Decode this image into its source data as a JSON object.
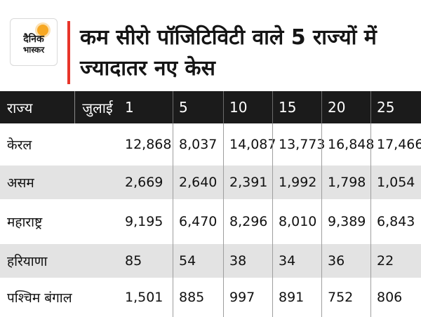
{
  "logo": {
    "line1": "दैनिक",
    "line2": "भास्कर"
  },
  "title": "कम सीरो पॉजिटिविटी वाले 5 राज्यों में ज्यादातर नए केस",
  "colors": {
    "accent": "#e8352a",
    "header_bg": "#1b1b1b",
    "stripe": "#e3e3e3",
    "logo_sun": "#f7a823"
  },
  "chart_data": {
    "type": "table",
    "title": "कम सीरो पॉजिटिविटी वाले 5 राज्यों में ज्यादातर नए केस",
    "row_header": "राज्य",
    "month_label": "जुलाई",
    "columns": [
      "1",
      "5",
      "10",
      "15",
      "20",
      "25"
    ],
    "rows": [
      {
        "state": "केरल",
        "values": [
          "12,868",
          "8,037",
          "14,087",
          "13,773",
          "16,848",
          "17,466"
        ]
      },
      {
        "state": "असम",
        "values": [
          "2,669",
          "2,640",
          "2,391",
          "1,992",
          "1,798",
          "1,054"
        ]
      },
      {
        "state": "महाराष्ट्र",
        "values": [
          "9,195",
          "6,470",
          "8,296",
          "8,010",
          "9,389",
          "6,843"
        ]
      },
      {
        "state": "हरियाणा",
        "values": [
          "85",
          "54",
          "38",
          "34",
          "36",
          "22"
        ]
      },
      {
        "state": "पश्चिम बंगाल",
        "values": [
          "1,501",
          "885",
          "997",
          "891",
          "752",
          "806"
        ]
      }
    ]
  }
}
